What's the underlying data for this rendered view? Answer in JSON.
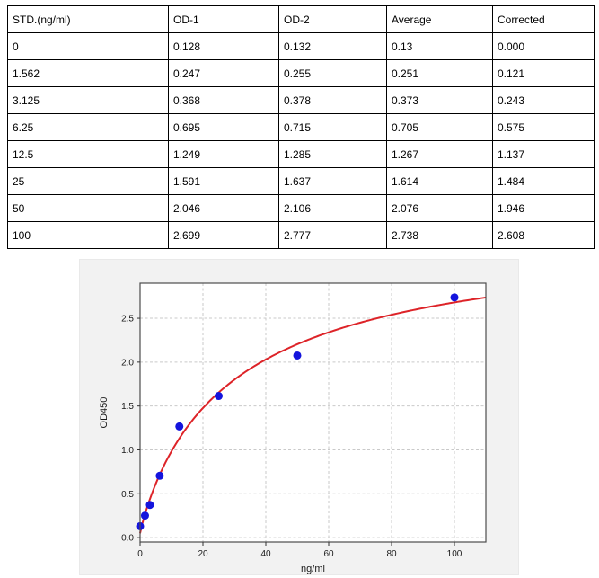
{
  "table": {
    "headers": [
      "STD.(ng/ml)",
      "OD-1",
      "OD-2",
      "Average",
      "Corrected"
    ],
    "rows": [
      [
        "0",
        "0.128",
        "0.132",
        "0.13",
        "0.000"
      ],
      [
        "1.562",
        "0.247",
        "0.255",
        "0.251",
        "0.121"
      ],
      [
        "3.125",
        "0.368",
        "0.378",
        "0.373",
        "0.243"
      ],
      [
        "6.25",
        "0.695",
        "0.715",
        "0.705",
        "0.575"
      ],
      [
        "12.5",
        "1.249",
        "1.285",
        "1.267",
        "1.137"
      ],
      [
        "25",
        "1.591",
        "1.637",
        "1.614",
        "1.484"
      ],
      [
        "50",
        "2.046",
        "2.106",
        "2.076",
        "1.946"
      ],
      [
        "100",
        "2.699",
        "2.777",
        "2.738",
        "2.608"
      ]
    ]
  },
  "chart_data": {
    "type": "scatter",
    "title": "",
    "xlabel": "ng/ml",
    "ylabel": "OD450",
    "x": [
      0,
      1.562,
      3.125,
      6.25,
      12.5,
      25,
      50,
      100
    ],
    "y": [
      0.13,
      0.251,
      0.373,
      0.705,
      1.267,
      1.614,
      2.076,
      2.738
    ],
    "xlim": [
      0,
      110
    ],
    "ylim": [
      -0.05,
      2.9
    ],
    "xticks": [
      0,
      20,
      40,
      60,
      80,
      100
    ],
    "yticks": [
      "0.0",
      "0.5",
      "1.0",
      "1.5",
      "2.0",
      "2.5"
    ],
    "grid": true,
    "legend": null,
    "point_color": "#1414dd",
    "curve_color": "#dd2328",
    "fit_curve": {
      "type": "4PL",
      "a": 0.05,
      "b": 0.92,
      "c": 30,
      "d": 3.55
    }
  }
}
